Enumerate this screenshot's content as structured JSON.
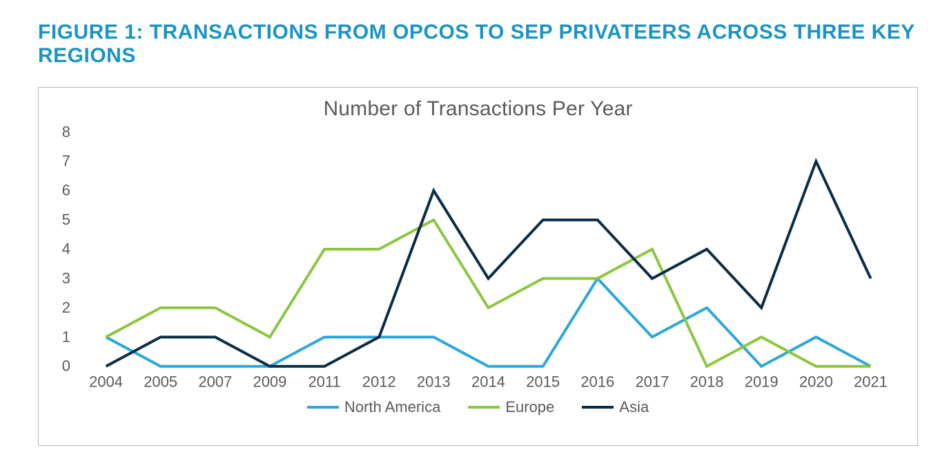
{
  "figure_title": "FIGURE 1: TRANSACTIONS FROM OPCOS TO SEP PRIVATEERS ACROSS THREE KEY REGIONS",
  "figure_title_color": "#1b94c4",
  "figure_title_fontsize": 30,
  "chart": {
    "type": "line",
    "title": "Number of Transactions Per Year",
    "title_color": "#5a5a5a",
    "title_fontsize": 30,
    "background_color": "#ffffff",
    "frame_border_color": "#b8b8b8",
    "axis_text_color": "#5a5a5a",
    "axis_fontsize": 22,
    "line_width": 4,
    "ylim": [
      0,
      8
    ],
    "yticks": [
      0,
      1,
      2,
      3,
      4,
      5,
      6,
      7,
      8
    ],
    "categories": [
      "2004",
      "2005",
      "2007",
      "2009",
      "2011",
      "2012",
      "2013",
      "2014",
      "2015",
      "2016",
      "2017",
      "2018",
      "2019",
      "2020",
      "2021"
    ],
    "series": [
      {
        "name": "North America",
        "color": "#2ba7d9",
        "values": [
          1,
          0,
          0,
          0,
          1,
          1,
          1,
          0,
          0,
          3,
          1,
          2,
          0,
          1,
          0
        ]
      },
      {
        "name": "Europe",
        "color": "#8cc63f",
        "values": [
          1,
          2,
          2,
          1,
          4,
          4,
          5,
          2,
          3,
          3,
          4,
          0,
          1,
          0,
          0
        ]
      },
      {
        "name": "Asia",
        "color": "#0a2d46",
        "values": [
          0,
          1,
          1,
          0,
          0,
          1,
          6,
          3,
          5,
          5,
          3,
          4,
          2,
          7,
          3
        ]
      }
    ],
    "legend_position": "bottom",
    "grid": false
  }
}
